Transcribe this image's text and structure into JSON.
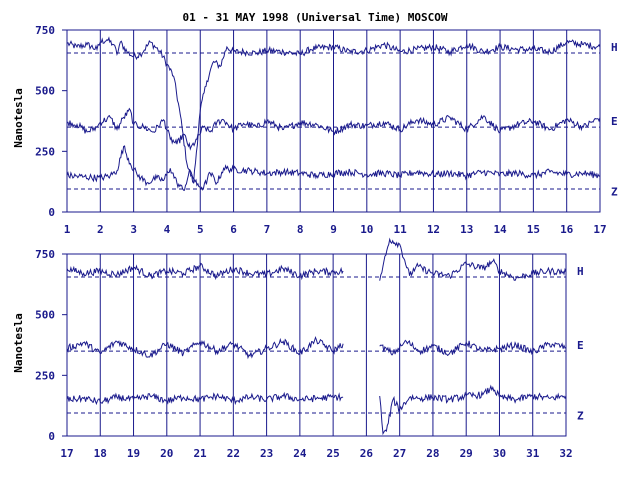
{
  "colors": {
    "ink": "#1a1a8c",
    "background": "#ffffff"
  },
  "chart_data": [
    {
      "type": "line",
      "title": "01 - 31 MAY 1998 (Universal Time) MOSCOW",
      "xlabel": "",
      "ylabel": "Nanotesla",
      "xlim": [
        1,
        17
      ],
      "ylim": [
        0,
        750
      ],
      "x_ticks": [
        "1",
        "2",
        "3",
        "4",
        "5",
        "6",
        "7",
        "8",
        "9",
        "10",
        "11",
        "12",
        "13",
        "14",
        "15",
        "16",
        "17"
      ],
      "y_ticks": [
        "0",
        "250",
        "500",
        "750"
      ],
      "grid": "vertical lines at each day",
      "series": [
        {
          "name": "H",
          "baseline": 655,
          "x": [
            1.0,
            1.3,
            1.6,
            1.9,
            2.0,
            2.2,
            2.4,
            2.5,
            2.6,
            2.8,
            3.0,
            3.2,
            3.5,
            3.8,
            4.0,
            4.2,
            4.4,
            4.6,
            4.8,
            5.0,
            5.2,
            5.4,
            5.6,
            5.8,
            6.0,
            6.3,
            6.7,
            7.0,
            7.5,
            8.0,
            8.3,
            8.5,
            9.0,
            9.5,
            10.0,
            10.5,
            11.0,
            11.5,
            12.0,
            12.5,
            13.0,
            13.5,
            14.0,
            14.5,
            15.0,
            15.5,
            16.0,
            16.5,
            17.0
          ],
          "y": [
            695,
            680,
            690,
            670,
            700,
            710,
            690,
            650,
            700,
            660,
            640,
            650,
            700,
            660,
            610,
            560,
            400,
            200,
            120,
            420,
            540,
            620,
            600,
            680,
            660,
            660,
            655,
            665,
            660,
            650,
            670,
            675,
            680,
            660,
            665,
            690,
            660,
            670,
            680,
            660,
            690,
            660,
            680,
            670,
            670,
            660,
            700,
            690,
            680
          ]
        },
        {
          "name": "E",
          "baseline": 350,
          "x": [
            1.0,
            1.3,
            1.6,
            1.9,
            2.0,
            2.3,
            2.5,
            2.7,
            2.9,
            3.0,
            3.3,
            3.6,
            3.9,
            4.1,
            4.3,
            4.5,
            4.7,
            4.9,
            5.1,
            5.3,
            5.5,
            5.7,
            6.0,
            6.3,
            6.7,
            7.0,
            7.5,
            8.0,
            8.5,
            9.0,
            9.5,
            10.0,
            10.5,
            11.0,
            11.5,
            12.0,
            12.5,
            13.0,
            13.5,
            14.0,
            14.5,
            15.0,
            15.5,
            16.0,
            16.5,
            17.0
          ],
          "y": [
            370,
            360,
            330,
            350,
            370,
            390,
            340,
            390,
            420,
            360,
            350,
            330,
            380,
            300,
            280,
            320,
            260,
            300,
            350,
            330,
            370,
            380,
            340,
            365,
            350,
            375,
            340,
            370,
            360,
            330,
            360,
            355,
            370,
            340,
            380,
            360,
            390,
            340,
            395,
            330,
            360,
            375,
            340,
            380,
            350,
            390
          ]
        },
        {
          "name": "Z",
          "baseline": 95,
          "x": [
            1.0,
            1.5,
            2.0,
            2.3,
            2.5,
            2.7,
            2.9,
            3.1,
            3.4,
            3.7,
            3.9,
            4.1,
            4.3,
            4.5,
            4.7,
            4.9,
            5.1,
            5.3,
            5.5,
            5.7,
            6.0,
            6.5,
            7.0,
            7.5,
            8.0,
            8.5,
            9.0,
            9.5,
            10.0,
            10.5,
            11.0,
            11.5,
            12.0,
            12.5,
            13.0,
            13.5,
            14.0,
            14.5,
            15.0,
            15.5,
            16.0,
            16.5,
            17.0
          ],
          "y": [
            150,
            145,
            140,
            150,
            170,
            270,
            200,
            155,
            120,
            140,
            130,
            180,
            120,
            90,
            170,
            110,
            100,
            160,
            120,
            180,
            175,
            170,
            160,
            165,
            160,
            150,
            160,
            165,
            155,
            160,
            150,
            165,
            155,
            160,
            150,
            165,
            155,
            160,
            150,
            165,
            155,
            160,
            150
          ]
        }
      ]
    },
    {
      "type": "line",
      "title": "",
      "xlabel": "",
      "ylabel": "Nanotesla",
      "xlim": [
        17,
        32
      ],
      "ylim": [
        0,
        750
      ],
      "x_ticks": [
        "17",
        "18",
        "19",
        "20",
        "21",
        "22",
        "23",
        "24",
        "25",
        "26",
        "27",
        "28",
        "29",
        "30",
        "31",
        "32"
      ],
      "y_ticks": [
        "0",
        "250",
        "500",
        "750"
      ],
      "grid": "vertical lines at each day",
      "gap": [
        25.3,
        26.4
      ],
      "series": [
        {
          "name": "H",
          "baseline": 655,
          "x": [
            17.0,
            17.5,
            18.0,
            18.5,
            19.0,
            19.5,
            20.0,
            20.5,
            21.0,
            21.5,
            22.0,
            22.5,
            23.0,
            23.5,
            24.0,
            24.5,
            25.0,
            25.3,
            null,
            26.4,
            26.5,
            26.7,
            27.0,
            27.3,
            27.5,
            28.0,
            28.5,
            29.0,
            29.5,
            29.8,
            30.0,
            30.5,
            31.0,
            31.5,
            32.0
          ],
          "y": [
            690,
            670,
            680,
            665,
            695,
            660,
            680,
            670,
            700,
            660,
            690,
            670,
            665,
            690,
            660,
            680,
            675,
            680,
            null,
            640,
            700,
            810,
            790,
            660,
            700,
            670,
            660,
            710,
            690,
            720,
            680,
            650,
            670,
            680,
            675
          ]
        },
        {
          "name": "E",
          "baseline": 350,
          "x": [
            17.0,
            17.5,
            18.0,
            18.5,
            19.0,
            19.5,
            20.0,
            20.5,
            21.0,
            21.5,
            22.0,
            22.5,
            23.0,
            23.5,
            24.0,
            24.5,
            25.0,
            25.3,
            null,
            26.4,
            26.8,
            27.2,
            27.6,
            28.0,
            28.5,
            29.0,
            29.5,
            30.0,
            30.5,
            31.0,
            31.5,
            32.0
          ],
          "y": [
            360,
            385,
            340,
            390,
            360,
            330,
            380,
            340,
            390,
            350,
            380,
            330,
            360,
            390,
            340,
            395,
            350,
            380,
            null,
            370,
            340,
            390,
            350,
            370,
            340,
            385,
            350,
            360,
            375,
            345,
            380,
            365
          ]
        },
        {
          "name": "Z",
          "baseline": 95,
          "x": [
            17.0,
            17.5,
            18.0,
            18.5,
            19.0,
            19.5,
            20.0,
            20.5,
            21.0,
            21.5,
            22.0,
            22.5,
            23.0,
            23.5,
            24.0,
            24.5,
            25.0,
            25.3,
            null,
            26.4,
            26.5,
            26.6,
            26.8,
            27.0,
            27.3,
            27.6,
            28.0,
            28.5,
            29.0,
            29.5,
            29.8,
            30.0,
            30.5,
            31.0,
            31.5,
            32.0
          ],
          "y": [
            150,
            155,
            140,
            160,
            150,
            165,
            145,
            160,
            150,
            165,
            145,
            160,
            150,
            165,
            150,
            155,
            160,
            160,
            null,
            165,
            10,
            20,
            150,
            110,
            160,
            155,
            160,
            150,
            165,
            170,
            200,
            160,
            150,
            165,
            155,
            165
          ]
        }
      ]
    }
  ]
}
